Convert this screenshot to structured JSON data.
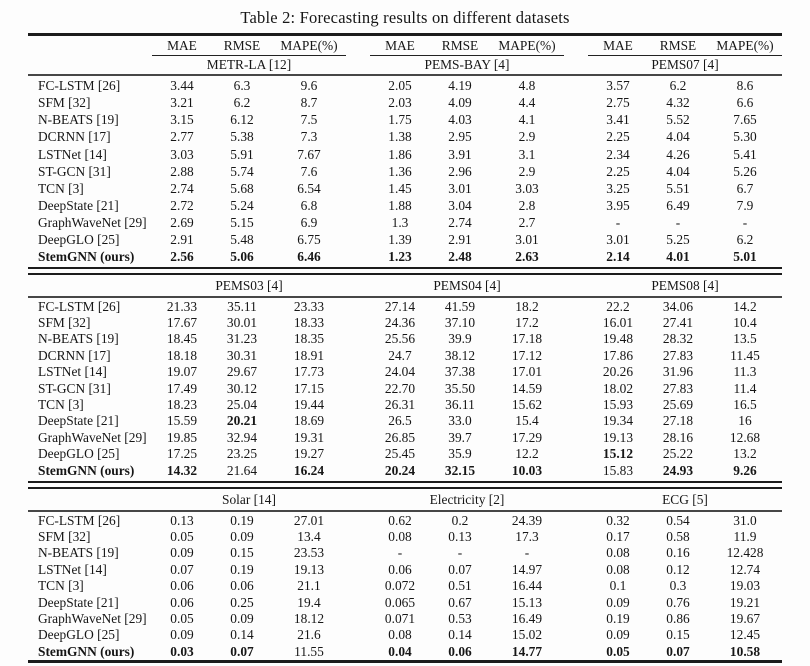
{
  "title": "Table 2: Forecasting results on different datasets",
  "metric_headers": [
    "MAE",
    "RMSE",
    "MAPE(%)"
  ],
  "sections": [
    {
      "datasets": [
        "METR-LA [12]",
        "PEMS-BAY [4]",
        "PEMS07 [4]"
      ],
      "rows": [
        {
          "label": "FC-LSTM [26]",
          "bold_label": 0,
          "values": [
            "3.44",
            "6.3",
            "9.6",
            "2.05",
            "4.19",
            "4.8",
            "3.57",
            "6.2",
            "8.6"
          ]
        },
        {
          "label": "SFM [32]",
          "bold_label": 0,
          "values": [
            "3.21",
            "6.2",
            "8.7",
            "2.03",
            "4.09",
            "4.4",
            "2.75",
            "4.32",
            "6.6"
          ]
        },
        {
          "label": "N-BEATS [19]",
          "bold_label": 0,
          "values": [
            "3.15",
            "6.12",
            "7.5",
            "1.75",
            "4.03",
            "4.1",
            "3.41",
            "5.52",
            "7.65"
          ]
        },
        {
          "label": "DCRNN [17]",
          "bold_label": 0,
          "values": [
            "2.77",
            "5.38",
            "7.3",
            "1.38",
            "2.95",
            "2.9",
            "2.25",
            "4.04",
            "5.30"
          ]
        },
        {
          "label": "LSTNet [14]",
          "bold_label": 0,
          "values": [
            "3.03",
            "5.91",
            "7.67",
            "1.86",
            "3.91",
            "3.1",
            "2.34",
            "4.26",
            "5.41"
          ]
        },
        {
          "label": "ST-GCN [31]",
          "bold_label": 0,
          "values": [
            "2.88",
            "5.74",
            "7.6",
            "1.36",
            "2.96",
            "2.9",
            "2.25",
            "4.04",
            "5.26"
          ]
        },
        {
          "label": "TCN [3]",
          "bold_label": 0,
          "values": [
            "2.74",
            "5.68",
            "6.54",
            "1.45",
            "3.01",
            "3.03",
            "3.25",
            "5.51",
            "6.7"
          ]
        },
        {
          "label": "DeepState [21]",
          "bold_label": 0,
          "values": [
            "2.72",
            "5.24",
            "6.8",
            "1.88",
            "3.04",
            "2.8",
            "3.95",
            "6.49",
            "7.9"
          ]
        },
        {
          "label": "GraphWaveNet [29]",
          "bold_label": 0,
          "values": [
            "2.69",
            "5.15",
            "6.9",
            "1.3",
            "2.74",
            "2.7",
            "-",
            "-",
            "-"
          ]
        },
        {
          "label": "DeepGLO [25]",
          "bold_label": 0,
          "values": [
            "2.91",
            "5.48",
            "6.75",
            "1.39",
            "2.91",
            "3.01",
            "3.01",
            "5.25",
            "6.2"
          ]
        },
        {
          "label": "StemGNN (ours)",
          "bold_label": 1,
          "values": [
            "2.56",
            "5.06",
            "6.46",
            "1.23",
            "2.48",
            "2.63",
            "2.14",
            "4.01",
            "5.01"
          ],
          "bold": [
            1,
            1,
            1,
            1,
            1,
            1,
            1,
            1,
            1
          ]
        }
      ]
    },
    {
      "datasets": [
        "PEMS03 [4]",
        "PEMS04 [4]",
        "PEMS08 [4]"
      ],
      "rows": [
        {
          "label": "FC-LSTM [26]",
          "bold_label": 0,
          "values": [
            "21.33",
            "35.11",
            "23.33",
            "27.14",
            "41.59",
            "18.2",
            "22.2",
            "34.06",
            "14.2"
          ]
        },
        {
          "label": "SFM [32]",
          "bold_label": 0,
          "values": [
            "17.67",
            "30.01",
            "18.33",
            "24.36",
            "37.10",
            "17.2",
            "16.01",
            "27.41",
            "10.4"
          ]
        },
        {
          "label": "N-BEATS [19]",
          "bold_label": 0,
          "values": [
            "18.45",
            "31.23",
            "18.35",
            "25.56",
            "39.9",
            "17.18",
            "19.48",
            "28.32",
            "13.5"
          ]
        },
        {
          "label": "DCRNN [17]",
          "bold_label": 0,
          "values": [
            "18.18",
            "30.31",
            "18.91",
            "24.7",
            "38.12",
            "17.12",
            "17.86",
            "27.83",
            "11.45"
          ]
        },
        {
          "label": "LSTNet [14]",
          "bold_label": 0,
          "values": [
            "19.07",
            "29.67",
            "17.73",
            "24.04",
            "37.38",
            "17.01",
            "20.26",
            "31.96",
            "11.3"
          ]
        },
        {
          "label": "ST-GCN [31]",
          "bold_label": 0,
          "values": [
            "17.49",
            "30.12",
            "17.15",
            "22.70",
            "35.50",
            "14.59",
            "18.02",
            "27.83",
            "11.4"
          ]
        },
        {
          "label": "TCN [3]",
          "bold_label": 0,
          "values": [
            "18.23",
            "25.04",
            "19.44",
            "26.31",
            "36.11",
            "15.62",
            "15.93",
            "25.69",
            "16.5"
          ]
        },
        {
          "label": "DeepState [21]",
          "bold_label": 0,
          "values": [
            "15.59",
            "20.21",
            "18.69",
            "26.5",
            "33.0",
            "15.4",
            "19.34",
            "27.18",
            "16"
          ],
          "bold": [
            0,
            1,
            0,
            0,
            0,
            0,
            0,
            0,
            0
          ]
        },
        {
          "label": "GraphWaveNet [29]",
          "bold_label": 0,
          "values": [
            "19.85",
            "32.94",
            "19.31",
            "26.85",
            "39.7",
            "17.29",
            "19.13",
            "28.16",
            "12.68"
          ]
        },
        {
          "label": "DeepGLO [25]",
          "bold_label": 0,
          "values": [
            "17.25",
            "23.25",
            "19.27",
            "25.45",
            "35.9",
            "12.2",
            "15.12",
            "25.22",
            "13.2"
          ],
          "bold": [
            0,
            0,
            0,
            0,
            0,
            0,
            1,
            0,
            0
          ]
        },
        {
          "label": "StemGNN (ours)",
          "bold_label": 1,
          "values": [
            "14.32",
            "21.64",
            "16.24",
            "20.24",
            "32.15",
            "10.03",
            "15.83",
            "24.93",
            "9.26"
          ],
          "bold": [
            1,
            0,
            1,
            1,
            1,
            1,
            0,
            1,
            1
          ]
        }
      ]
    },
    {
      "datasets": [
        "Solar [14]",
        "Electricity [2]",
        "ECG [5]"
      ],
      "rows": [
        {
          "label": "FC-LSTM [26]",
          "bold_label": 0,
          "values": [
            "0.13",
            "0.19",
            "27.01",
            "0.62",
            "0.2",
            "24.39",
            "0.32",
            "0.54",
            "31.0"
          ]
        },
        {
          "label": "SFM [32]",
          "bold_label": 0,
          "values": [
            "0.05",
            "0.09",
            "13.4",
            "0.08",
            "0.13",
            "17.3",
            "0.17",
            "0.58",
            "11.9"
          ]
        },
        {
          "label": "N-BEATS [19]",
          "bold_label": 0,
          "values": [
            "0.09",
            "0.15",
            "23.53",
            "-",
            "-",
            "-",
            "0.08",
            "0.16",
            "12.428"
          ]
        },
        {
          "label": "LSTNet [14]",
          "bold_label": 0,
          "values": [
            "0.07",
            "0.19",
            "19.13",
            "0.06",
            "0.07",
            "14.97",
            "0.08",
            "0.12",
            "12.74"
          ]
        },
        {
          "label": "TCN [3]",
          "bold_label": 0,
          "values": [
            "0.06",
            "0.06",
            "21.1",
            "0.072",
            "0.51",
            "16.44",
            "0.1",
            "0.3",
            "19.03"
          ]
        },
        {
          "label": "DeepState [21]",
          "bold_label": 0,
          "values": [
            "0.06",
            "0.25",
            "19.4",
            "0.065",
            "0.67",
            "15.13",
            "0.09",
            "0.76",
            "19.21"
          ]
        },
        {
          "label": "GraphWaveNet [29]",
          "bold_label": 0,
          "values": [
            "0.05",
            "0.09",
            "18.12",
            "0.071",
            "0.53",
            "16.49",
            "0.19",
            "0.86",
            "19.67"
          ]
        },
        {
          "label": "DeepGLO [25]",
          "bold_label": 0,
          "values": [
            "0.09",
            "0.14",
            "21.6",
            "0.08",
            "0.14",
            "15.02",
            "0.09",
            "0.15",
            "12.45"
          ]
        },
        {
          "label": "StemGNN (ours)",
          "bold_label": 1,
          "values": [
            "0.03",
            "0.07",
            "11.55",
            "0.04",
            "0.06",
            "14.77",
            "0.05",
            "0.07",
            "10.58"
          ],
          "bold": [
            1,
            1,
            0,
            1,
            1,
            1,
            1,
            1,
            1
          ]
        }
      ]
    }
  ]
}
